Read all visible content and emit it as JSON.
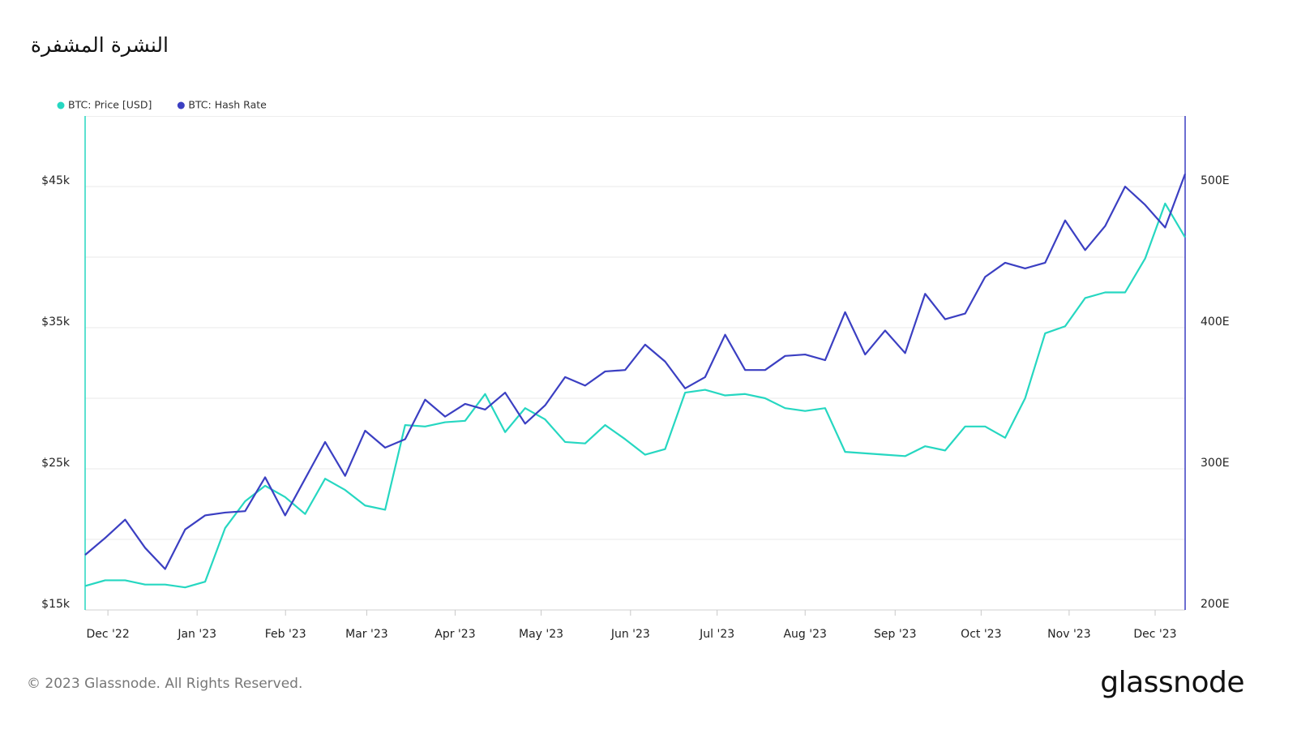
{
  "chart_data": {
    "type": "line",
    "title": "النشرة المشفرة",
    "categories": [
      null,
      null,
      null,
      null,
      null,
      null,
      null,
      null,
      null,
      null,
      null,
      null,
      null,
      null,
      null,
      null,
      null,
      null,
      null,
      null,
      null,
      null,
      null,
      null,
      null,
      null,
      null,
      null,
      null,
      null,
      null,
      null,
      null,
      null,
      null,
      null,
      null,
      null,
      null,
      null,
      null,
      null,
      null,
      null,
      null,
      null,
      null,
      null,
      null,
      null,
      null,
      null,
      null,
      null,
      null,
      null
    ],
    "xlim": [
      0,
      55
    ],
    "xticks": [
      {
        "value": 1.14,
        "label": "Dec '22"
      },
      {
        "value": 5.6,
        "label": "Jan '23"
      },
      {
        "value": 10.02,
        "label": "Feb '23"
      },
      {
        "value": 14.08,
        "label": "Mar '23"
      },
      {
        "value": 18.5,
        "label": "Apr '23"
      },
      {
        "value": 22.8,
        "label": "May '23"
      },
      {
        "value": 27.27,
        "label": "Jun '23"
      },
      {
        "value": 31.6,
        "label": "Jul '23"
      },
      {
        "value": 36.0,
        "label": "Aug '23"
      },
      {
        "value": 40.5,
        "label": "Sep '23"
      },
      {
        "value": 44.8,
        "label": "Oct '23"
      },
      {
        "value": 49.2,
        "label": "Nov '23"
      },
      {
        "value": 53.5,
        "label": "Dec '23"
      }
    ],
    "ylim": [
      15000,
      50000
    ],
    "yticks": [
      {
        "value": 15000,
        "label": "$15k"
      },
      {
        "value": 25000,
        "label": "$25k"
      },
      {
        "value": 35000,
        "label": "$35k"
      },
      {
        "value": 45000,
        "label": "$45k"
      }
    ],
    "ygrid": [
      20000,
      30000,
      40000
    ],
    "y2lim": [
      200,
      550
    ],
    "y2ticks": [
      {
        "value": 200,
        "label": "200E"
      },
      {
        "value": 300,
        "label": "300E"
      },
      {
        "value": 400,
        "label": "400E"
      },
      {
        "value": 500,
        "label": "500E"
      }
    ],
    "grid": true,
    "legend": "top-left",
    "series": [
      {
        "name": "BTC: Price [USD]",
        "color": "#26d7c1",
        "values": [
          16700,
          17100,
          17100,
          16800,
          16800,
          16600,
          17000,
          20800,
          22700,
          23800,
          23000,
          21800,
          24300,
          23500,
          22400,
          22100,
          28100,
          28000,
          28300,
          28400,
          30300,
          27600,
          29300,
          28500,
          26900,
          26800,
          28100,
          27100,
          26000,
          26400,
          30400,
          30600,
          30200,
          30300,
          30000,
          29300,
          29100,
          29300,
          26200,
          26100,
          26000,
          25900,
          26600,
          26300,
          28000,
          28000,
          27200,
          30000,
          34600,
          35100,
          37100,
          37500,
          37500,
          39900,
          43800,
          41400
        ]
      },
      {
        "name": "BTC: Hash Rate",
        "color": "#3b3fc2",
        "axis": "y2",
        "values": [
          239,
          251,
          264,
          244,
          229,
          257,
          267,
          269,
          270,
          294,
          267,
          293,
          319,
          295,
          327,
          315,
          321,
          349,
          337,
          346,
          342,
          354,
          332,
          345,
          365,
          359,
          369,
          370,
          388,
          376,
          357,
          365,
          395,
          370,
          370,
          380,
          381,
          377,
          411,
          381,
          398,
          382,
          424,
          406,
          410,
          436,
          446,
          442,
          446,
          476,
          455,
          472,
          500,
          487,
          471,
          509
        ]
      }
    ]
  },
  "footer": {
    "copyright": "© 2023 Glassnode. All Rights Reserved."
  },
  "logo": "glassnode"
}
